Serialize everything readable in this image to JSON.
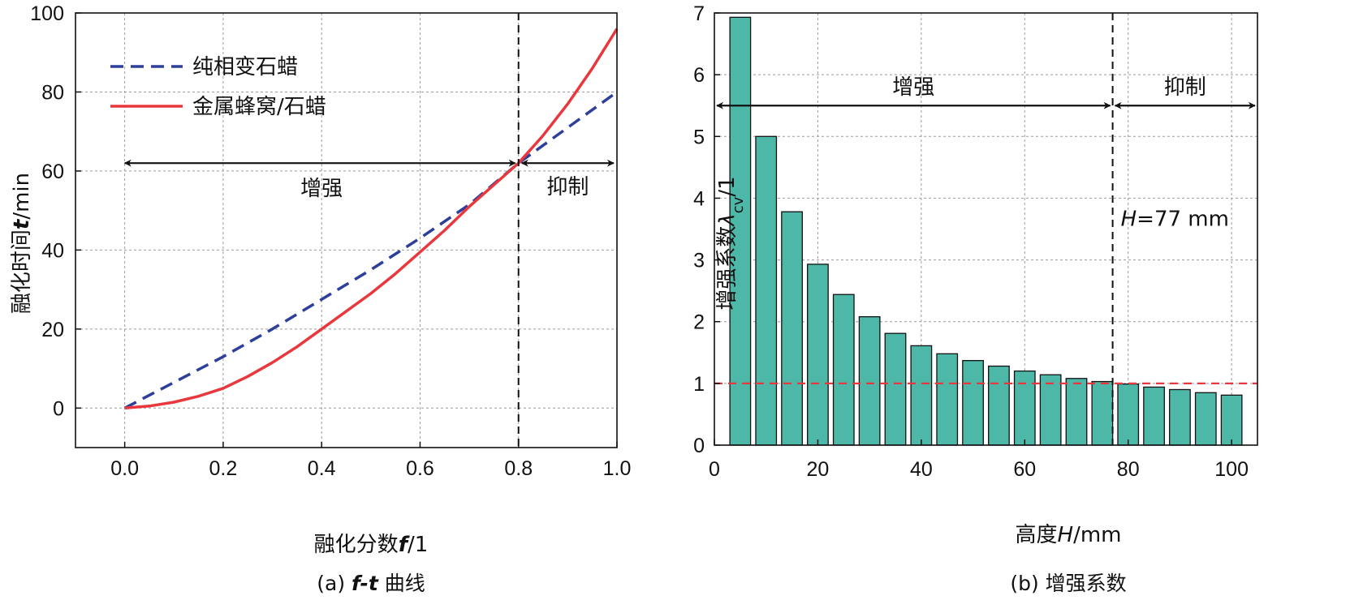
{
  "chart_data": [
    {
      "type": "line",
      "caption": {
        "prefix": "(a) ",
        "italic": "f-t",
        "suffix": " 曲线"
      },
      "xlabel": {
        "prefix": "融化分数",
        "italic": "f",
        "suffix": "/1"
      },
      "ylabel": {
        "prefix": "融化时间",
        "italic": "t",
        "suffix": "/min"
      },
      "xlim": [
        -0.1,
        1.0
      ],
      "ylim": [
        -10,
        100
      ],
      "xticks": [
        "0.0",
        "0.2",
        "0.4",
        "0.6",
        "0.8",
        "1.0"
      ],
      "xtick_values": [
        0.0,
        0.2,
        0.4,
        0.6,
        0.8,
        1.0
      ],
      "yticks": [
        "0",
        "20",
        "40",
        "60",
        "80",
        "100"
      ],
      "ytick_values": [
        0,
        20,
        40,
        60,
        80,
        100
      ],
      "grid": true,
      "legend_position": "top-left",
      "series": [
        {
          "name": "纯相变石蜡",
          "style": "dashed",
          "color": "#2e3f9a",
          "x": [
            0.0,
            0.1,
            0.2,
            0.3,
            0.4,
            0.5,
            0.6,
            0.7,
            0.8,
            0.9,
            1.0
          ],
          "y": [
            0,
            6.5,
            13,
            20,
            27.5,
            35,
            43,
            51.5,
            62,
            71,
            80
          ]
        },
        {
          "name": "金属蜂窝/石蜡",
          "style": "solid",
          "color": "#e8383d",
          "x": [
            0.0,
            0.05,
            0.1,
            0.15,
            0.2,
            0.25,
            0.3,
            0.35,
            0.4,
            0.45,
            0.5,
            0.55,
            0.6,
            0.65,
            0.7,
            0.75,
            0.8,
            0.85,
            0.9,
            0.95,
            1.0
          ],
          "y": [
            0,
            0.5,
            1.5,
            3,
            5,
            8,
            11.5,
            15.5,
            20,
            24.5,
            29,
            34,
            39.5,
            45,
            51,
            56.5,
            62,
            69,
            77,
            86,
            96
          ]
        }
      ],
      "annotations": {
        "divider_x": 0.8,
        "arrow_y": 62,
        "enhance_label": "增强",
        "suppress_label": "抑制"
      }
    },
    {
      "type": "bar",
      "caption": "(b) 增强系数",
      "xlabel": {
        "prefix": "高度",
        "italic": "H",
        "suffix": "/mm"
      },
      "ylabel": {
        "prefix": "增强系数",
        "symbol": "λ",
        "sub": "cv",
        "suffix": "/1"
      },
      "xlim": [
        0,
        105
      ],
      "ylim": [
        0,
        7
      ],
      "xticks": [
        "0",
        "20",
        "40",
        "60",
        "80",
        "100"
      ],
      "xtick_values": [
        0,
        20,
        40,
        60,
        80,
        100
      ],
      "yticks": [
        "0",
        "1",
        "2",
        "3",
        "4",
        "5",
        "6",
        "7"
      ],
      "ytick_values": [
        0,
        1,
        2,
        3,
        4,
        5,
        6,
        7
      ],
      "grid": true,
      "bar_width": 4,
      "bar_color": "#4db8a8",
      "x": [
        5,
        10,
        15,
        20,
        25,
        30,
        35,
        40,
        45,
        50,
        55,
        60,
        65,
        70,
        75,
        80,
        85,
        90,
        95,
        100
      ],
      "values": [
        6.93,
        5.0,
        3.78,
        2.93,
        2.44,
        2.08,
        1.81,
        1.61,
        1.48,
        1.37,
        1.28,
        1.2,
        1.14,
        1.08,
        1.03,
        0.99,
        0.94,
        0.9,
        0.85,
        0.81
      ],
      "reference_y": 1,
      "annotations": {
        "divider_x": 77,
        "arrow_y": 5.5,
        "enhance_label": "增强",
        "suppress_label": "抑制",
        "h_label": {
          "italic": "H",
          "suffix": "=77 mm"
        }
      }
    }
  ]
}
